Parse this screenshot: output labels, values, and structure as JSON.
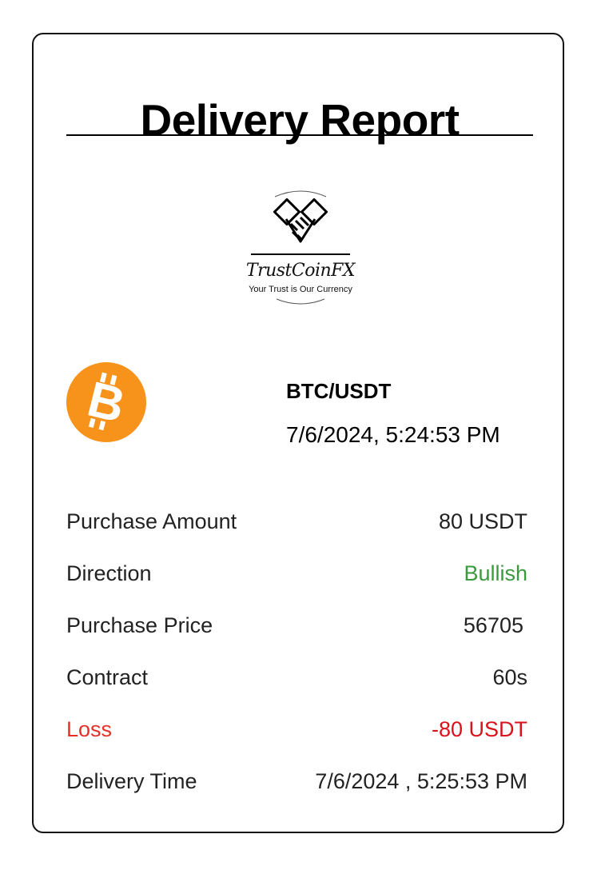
{
  "report": {
    "title": "Delivery Report",
    "logo": {
      "brand": "TrustCoinFX",
      "tagline": "Your Trust is Our Currency",
      "icon": "handshake-icon"
    },
    "asset": {
      "icon": "bitcoin-icon",
      "icon_color": "#F7931A",
      "pair": "BTC/USDT",
      "timestamp": "7/6/2024, 5:24:53 PM"
    },
    "rows": [
      {
        "label": "Purchase Amount",
        "value": "80 USDT"
      },
      {
        "label": "Direction",
        "value": "Bullish",
        "value_color": "#3A9A3D"
      },
      {
        "label": "Purchase Price",
        "value": "56705"
      },
      {
        "label": "Contract",
        "value": "60s"
      },
      {
        "label": "Loss",
        "value": "-80 USDT",
        "label_color": "#E5302A",
        "value_color": "#D9121B"
      },
      {
        "label": "Delivery Time",
        "value": "7/6/2024 , 5:25:53 PM"
      }
    ]
  }
}
